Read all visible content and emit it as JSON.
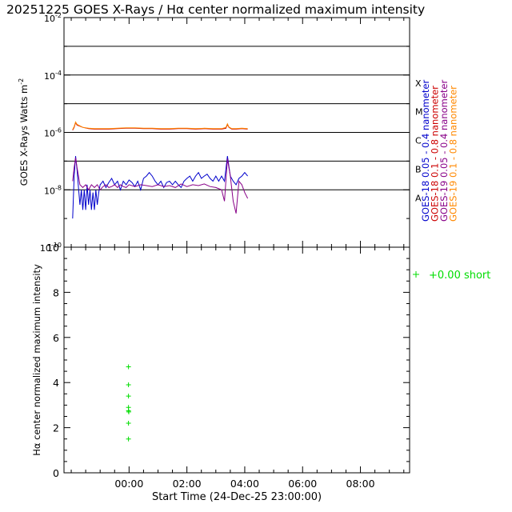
{
  "title": "20251225 GOES X-Rays / Hα center normalized maximum intensity",
  "chart_data": [
    {
      "type": "line",
      "ylabel": "GOES X-Rays Watts m",
      "ylabel_sup": "-2",
      "yscale": "log",
      "ylim": [
        1e-10,
        0.01
      ],
      "y_ticks": [
        {
          "value": 0.01,
          "label": "10",
          "exp": "-2"
        },
        {
          "value": 0.0001,
          "label": "10",
          "exp": "-4"
        },
        {
          "value": 1e-06,
          "label": "10",
          "exp": "-6"
        },
        {
          "value": 1e-08,
          "label": "10",
          "exp": "-8"
        },
        {
          "value": 1e-10,
          "label": "10",
          "exp": "-10"
        }
      ],
      "flare_class_lines": [
        0.001,
        0.0001,
        1e-05,
        1e-06,
        1e-07,
        1e-08
      ],
      "flare_class_labels": [
        {
          "label": "X",
          "value": 0.0001
        },
        {
          "label": "M",
          "value": 1e-05
        },
        {
          "label": "C",
          "value": 1e-06
        },
        {
          "label": "B",
          "value": 1e-07
        },
        {
          "label": "A",
          "value": 1e-08
        }
      ],
      "series": [
        {
          "name": "GOES-18 0.05 - 0.4 nanometer",
          "color": "#0000cc",
          "x": [
            -0.95,
            -0.9,
            -0.85,
            -0.8,
            -0.75,
            -0.7,
            -0.65,
            -0.6,
            -0.55,
            -0.5,
            -0.45,
            -0.4,
            -0.35,
            -0.3,
            -0.25,
            -0.2,
            -0.15,
            -0.1,
            -0.05,
            0.0,
            0.1,
            0.2,
            0.3,
            0.4,
            0.5,
            0.6,
            0.7,
            0.8,
            0.9,
            1.0,
            1.1,
            1.2,
            1.3,
            1.4,
            1.5,
            1.6,
            1.7,
            1.8,
            1.9,
            2.0,
            2.1,
            2.2,
            2.3,
            2.4,
            2.5,
            2.6,
            2.7,
            2.8,
            2.9,
            3.0,
            3.1,
            3.2,
            3.3,
            3.4,
            3.5,
            3.6,
            3.7,
            3.8,
            3.9,
            4.0,
            4.1,
            4.2,
            4.3,
            4.4,
            4.5,
            4.6,
            4.7,
            4.8,
            4.9,
            5.0,
            5.1
          ],
          "y": [
            1e-09,
            3e-08,
            1.5e-07,
            5e-08,
            1.2e-08,
            3e-09,
            1e-08,
            2e-09,
            1e-08,
            2e-09,
            1.5e-08,
            3e-09,
            1e-08,
            2e-09,
            8e-09,
            2e-09,
            1e-08,
            3e-09,
            8e-09,
            1.5e-08,
            2e-08,
            1.2e-08,
            1.8e-08,
            2.5e-08,
            1.5e-08,
            2e-08,
            1e-08,
            2e-08,
            1.5e-08,
            2.2e-08,
            1.8e-08,
            1.3e-08,
            2e-08,
            1e-08,
            2.5e-08,
            3e-08,
            4e-08,
            3e-08,
            2e-08,
            1.5e-08,
            2e-08,
            1.2e-08,
            1.8e-08,
            2e-08,
            1.5e-08,
            2e-08,
            1.5e-08,
            1.2e-08,
            2e-08,
            2.5e-08,
            3e-08,
            2e-08,
            3e-08,
            4e-08,
            2.5e-08,
            3e-08,
            3.5e-08,
            2.5e-08,
            2e-08,
            3e-08,
            2e-08,
            3e-08,
            2e-08,
            1.5e-07,
            3e-08,
            2e-08,
            1.5e-08,
            2.5e-08,
            3e-08,
            4e-08,
            3e-08
          ]
        },
        {
          "name": "GOES-18 0.1 - 0.8 nanometer",
          "color": "#cc0000",
          "x": [
            -0.95,
            -0.9,
            -0.85,
            -0.8,
            -0.6,
            -0.4,
            -0.2,
            0.0,
            0.3,
            0.6,
            0.9,
            1.2,
            1.5,
            1.8,
            2.1,
            2.4,
            2.7,
            3.0,
            3.3,
            3.6,
            3.9,
            4.2,
            4.35,
            4.4,
            4.45,
            4.55,
            4.7,
            4.9,
            5.1
          ],
          "y": [
            1.2e-06,
            1.5e-06,
            2.2e-06,
            1.8e-06,
            1.5e-06,
            1.35e-06,
            1.3e-06,
            1.3e-06,
            1.3e-06,
            1.35e-06,
            1.4e-06,
            1.4e-06,
            1.35e-06,
            1.35e-06,
            1.3e-06,
            1.3e-06,
            1.35e-06,
            1.35e-06,
            1.3e-06,
            1.35e-06,
            1.3e-06,
            1.3e-06,
            1.4e-06,
            1.9e-06,
            1.5e-06,
            1.3e-06,
            1.3e-06,
            1.35e-06,
            1.3e-06
          ]
        },
        {
          "name": "GOES-19 0.05 - 0.4 nanometer",
          "color": "#880088",
          "x": [
            -0.95,
            -0.9,
            -0.85,
            -0.8,
            -0.75,
            -0.7,
            -0.6,
            -0.5,
            -0.4,
            -0.3,
            -0.2,
            -0.1,
            0.0,
            0.1,
            0.2,
            0.3,
            0.4,
            0.5,
            0.6,
            0.7,
            0.8,
            0.9,
            1.0,
            1.2,
            1.4,
            1.6,
            1.8,
            2.0,
            2.2,
            2.4,
            2.6,
            2.8,
            3.0,
            3.2,
            3.4,
            3.6,
            3.8,
            4.0,
            4.2,
            4.3,
            4.4,
            4.5,
            4.6,
            4.7,
            4.8,
            4.9,
            5.0,
            5.1
          ],
          "y": [
            2e-08,
            6e-08,
            1.3e-07,
            6e-08,
            3e-08,
            1.5e-08,
            1.2e-08,
            1.5e-08,
            1e-08,
            1.5e-08,
            1.2e-08,
            1.5e-08,
            1e-08,
            1.3e-08,
            1.5e-08,
            1.2e-08,
            1.3e-08,
            1.5e-08,
            1.2e-08,
            1.5e-08,
            1.3e-08,
            1.2e-08,
            1.5e-08,
            1.3e-08,
            1.5e-08,
            1.4e-08,
            1.3e-08,
            1.5e-08,
            1.3e-08,
            1.4e-08,
            1.2e-08,
            1.6e-08,
            1.3e-08,
            1.5e-08,
            1.4e-08,
            1.6e-08,
            1.3e-08,
            1.2e-08,
            1e-08,
            4e-09,
            1.2e-07,
            3e-08,
            4e-09,
            1.5e-09,
            2e-08,
            1.5e-08,
            8e-09,
            5e-09
          ]
        },
        {
          "name": "GOES-19 0.1 - 0.8 nanometer",
          "color": "#ff8800",
          "x": [
            -0.95,
            -0.9,
            -0.85,
            -0.8,
            -0.6,
            -0.4,
            -0.2,
            0.0,
            0.3,
            0.6,
            0.9,
            1.2,
            1.5,
            1.8,
            2.1,
            2.4,
            2.7,
            3.0,
            3.3,
            3.6,
            3.9,
            4.2,
            4.35,
            4.4,
            4.45,
            4.55,
            4.7,
            4.9,
            5.1
          ],
          "y": [
            1.25e-06,
            1.6e-06,
            2.3e-06,
            1.9e-06,
            1.5e-06,
            1.4e-06,
            1.35e-06,
            1.35e-06,
            1.35e-06,
            1.4e-06,
            1.45e-06,
            1.45e-06,
            1.4e-06,
            1.4e-06,
            1.35e-06,
            1.35e-06,
            1.4e-06,
            1.4e-06,
            1.35e-06,
            1.4e-06,
            1.35e-06,
            1.35e-06,
            1.5e-06,
            2e-06,
            1.55e-06,
            1.35e-06,
            1.35e-06,
            1.4e-06,
            1.35e-06
          ]
        }
      ]
    },
    {
      "type": "scatter",
      "ylabel": "Hα center normalized maximum intensity",
      "xlabel": "Start Time (24-Dec-25 23:00:00)",
      "xlim": [
        -1.25,
        10.7
      ],
      "ylim": [
        0,
        10
      ],
      "x_ticks": [
        {
          "value": 1,
          "label": "00:00"
        },
        {
          "value": 3,
          "label": "02:00"
        },
        {
          "value": 5,
          "label": "04:00"
        },
        {
          "value": 7,
          "label": "06:00"
        },
        {
          "value": 9,
          "label": "08:00"
        }
      ],
      "y_ticks": [
        0,
        2,
        4,
        6,
        8,
        10
      ],
      "series": [
        {
          "name": "+0.00 short",
          "color": "#00dd00",
          "marker": "+",
          "x": [
            0.98,
            0.98,
            0.98,
            0.98,
            0.98,
            0.99,
            0.98,
            0.98
          ],
          "y": [
            4.7,
            3.9,
            3.4,
            2.9,
            2.75,
            2.7,
            2.2,
            1.5
          ]
        }
      ]
    }
  ]
}
